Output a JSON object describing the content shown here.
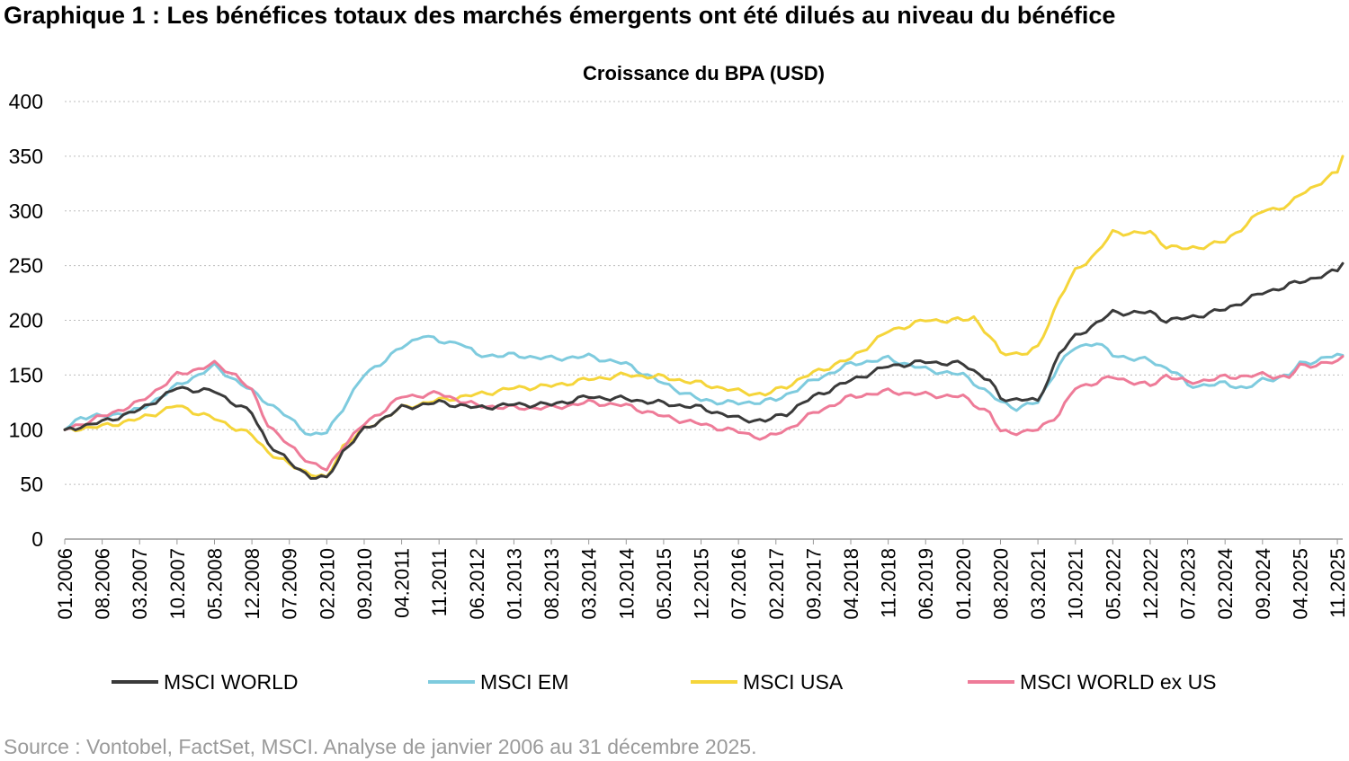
{
  "figure": {
    "title": "Graphique 1 : Les bénéfices totaux des marchés émergents ont été dilués au niveau du bénéfice",
    "source": "Source : Vontobel, FactSet, MSCI. Analyse de janvier 2006 au 31 décembre 2025."
  },
  "chart_data": {
    "type": "line",
    "title": "Croissance du BPA (USD)",
    "xlabel": "",
    "ylabel": "",
    "ylim": [
      0,
      400
    ],
    "yticks": [
      0,
      50,
      100,
      150,
      200,
      250,
      300,
      350,
      400
    ],
    "grid": "horizontal dotted",
    "legend_position": "bottom",
    "x_start": "01.2006",
    "x_end": "12.2025",
    "x_tick_labels": [
      "01.2006",
      "08.2006",
      "03.2007",
      "10.2007",
      "05.2008",
      "12.2008",
      "07.2009",
      "02.2010",
      "09.2010",
      "04.2011",
      "11.2011",
      "06.2012",
      "01.2013",
      "08.2013",
      "03.2014",
      "10.2014",
      "05.2015",
      "12.2015",
      "07.2016",
      "02.2017",
      "09.2017",
      "04.2018",
      "11.2018",
      "06.2019",
      "01.2020",
      "08.2020",
      "03.2021",
      "10.2021",
      "05.2022",
      "12.2022",
      "07.2023",
      "02.2024",
      "09.2024",
      "04.2025",
      "11.2025"
    ],
    "series": [
      {
        "name": "MSCI WORLD",
        "color": "#3a3a3a",
        "points": [
          [
            "01.2006",
            100
          ],
          [
            "08.2006",
            107
          ],
          [
            "03.2007",
            118
          ],
          [
            "10.2007",
            138
          ],
          [
            "05.2008",
            135
          ],
          [
            "12.2008",
            115
          ],
          [
            "03.2009",
            88
          ],
          [
            "07.2009",
            70
          ],
          [
            "11.2009",
            57
          ],
          [
            "02.2010",
            55
          ],
          [
            "05.2010",
            80
          ],
          [
            "09.2010",
            100
          ],
          [
            "04.2011",
            120
          ],
          [
            "11.2011",
            125
          ],
          [
            "06.2012",
            120
          ],
          [
            "01.2013",
            123
          ],
          [
            "08.2013",
            123
          ],
          [
            "03.2014",
            130
          ],
          [
            "10.2014",
            128
          ],
          [
            "05.2015",
            124
          ],
          [
            "12.2015",
            120
          ],
          [
            "07.2016",
            110
          ],
          [
            "12.2016",
            108
          ],
          [
            "04.2017",
            115
          ],
          [
            "09.2017",
            130
          ],
          [
            "04.2018",
            145
          ],
          [
            "11.2018",
            158
          ],
          [
            "06.2019",
            162
          ],
          [
            "01.2020",
            160
          ],
          [
            "06.2020",
            145
          ],
          [
            "08.2020",
            128
          ],
          [
            "01.2021",
            128
          ],
          [
            "03.2021",
            125
          ],
          [
            "07.2021",
            170
          ],
          [
            "10.2021",
            185
          ],
          [
            "05.2022",
            207
          ],
          [
            "12.2022",
            207
          ],
          [
            "03.2023",
            200
          ],
          [
            "07.2023",
            202
          ],
          [
            "02.2024",
            210
          ],
          [
            "09.2024",
            225
          ],
          [
            "04.2025",
            235
          ],
          [
            "11.2025",
            245
          ],
          [
            "12.2025",
            252
          ]
        ]
      },
      {
        "name": "MSCI EM",
        "color": "#7ecbde",
        "points": [
          [
            "01.2006",
            100
          ],
          [
            "04.2006",
            112
          ],
          [
            "08.2006",
            112
          ],
          [
            "03.2007",
            118
          ],
          [
            "10.2007",
            140
          ],
          [
            "05.2008",
            158
          ],
          [
            "09.2008",
            145
          ],
          [
            "12.2008",
            135
          ],
          [
            "05.2009",
            118
          ],
          [
            "07.2009",
            110
          ],
          [
            "11.2009",
            95
          ],
          [
            "02.2010",
            97
          ],
          [
            "05.2010",
            120
          ],
          [
            "09.2010",
            150
          ],
          [
            "04.2011",
            175
          ],
          [
            "08.2011",
            187
          ],
          [
            "11.2011",
            180
          ],
          [
            "03.2012",
            180
          ],
          [
            "06.2012",
            168
          ],
          [
            "01.2013",
            168
          ],
          [
            "08.2013",
            165
          ],
          [
            "03.2014",
            167
          ],
          [
            "10.2014",
            160
          ],
          [
            "05.2015",
            142
          ],
          [
            "12.2015",
            127
          ],
          [
            "07.2016",
            124
          ],
          [
            "02.2017",
            127
          ],
          [
            "09.2017",
            145
          ],
          [
            "04.2018",
            160
          ],
          [
            "11.2018",
            165
          ],
          [
            "06.2019",
            155
          ],
          [
            "01.2020",
            150
          ],
          [
            "04.2020",
            140
          ],
          [
            "08.2020",
            125
          ],
          [
            "11.2020",
            120
          ],
          [
            "03.2021",
            125
          ],
          [
            "07.2021",
            160
          ],
          [
            "10.2021",
            175
          ],
          [
            "02.2022",
            180
          ],
          [
            "05.2022",
            168
          ],
          [
            "12.2022",
            163
          ],
          [
            "05.2023",
            152
          ],
          [
            "07.2023",
            140
          ],
          [
            "02.2024",
            142
          ],
          [
            "06.2024",
            138
          ],
          [
            "09.2024",
            145
          ],
          [
            "02.2025",
            150
          ],
          [
            "04.2025",
            160
          ],
          [
            "11.2025",
            168
          ],
          [
            "12.2025",
            168
          ]
        ]
      },
      {
        "name": "MSCI USA",
        "color": "#f5d53a",
        "points": [
          [
            "01.2006",
            100
          ],
          [
            "08.2006",
            103
          ],
          [
            "03.2007",
            110
          ],
          [
            "10.2007",
            122
          ],
          [
            "05.2008",
            110
          ],
          [
            "12.2008",
            95
          ],
          [
            "03.2009",
            80
          ],
          [
            "07.2009",
            68
          ],
          [
            "11.2009",
            60
          ],
          [
            "02.2010",
            55
          ],
          [
            "05.2010",
            85
          ],
          [
            "09.2010",
            100
          ],
          [
            "04.2011",
            120
          ],
          [
            "11.2011",
            127
          ],
          [
            "06.2012",
            132
          ],
          [
            "01.2013",
            138
          ],
          [
            "08.2013",
            140
          ],
          [
            "03.2014",
            146
          ],
          [
            "10.2014",
            150
          ],
          [
            "05.2015",
            148
          ],
          [
            "12.2015",
            142
          ],
          [
            "07.2016",
            135
          ],
          [
            "12.2016",
            132
          ],
          [
            "04.2017",
            140
          ],
          [
            "09.2017",
            152
          ],
          [
            "04.2018",
            165
          ],
          [
            "11.2018",
            190
          ],
          [
            "06.2019",
            200
          ],
          [
            "01.2020",
            200
          ],
          [
            "03.2020",
            203
          ],
          [
            "06.2020",
            185
          ],
          [
            "08.2020",
            170
          ],
          [
            "01.2021",
            170
          ],
          [
            "03.2021",
            175
          ],
          [
            "07.2021",
            220
          ],
          [
            "10.2021",
            245
          ],
          [
            "02.2022",
            262
          ],
          [
            "05.2022",
            280
          ],
          [
            "12.2022",
            280
          ],
          [
            "03.2023",
            268
          ],
          [
            "07.2023",
            265
          ],
          [
            "02.2024",
            272
          ],
          [
            "09.2024",
            300
          ],
          [
            "02.2025",
            305
          ],
          [
            "04.2025",
            315
          ],
          [
            "11.2025",
            335
          ],
          [
            "12.2025",
            350
          ]
        ]
      },
      {
        "name": "MSCI WORLD ex US",
        "color": "#ee7b98",
        "points": [
          [
            "01.2006",
            100
          ],
          [
            "08.2006",
            112
          ],
          [
            "03.2007",
            125
          ],
          [
            "10.2007",
            150
          ],
          [
            "05.2008",
            160
          ],
          [
            "09.2008",
            150
          ],
          [
            "12.2008",
            135
          ],
          [
            "03.2009",
            105
          ],
          [
            "07.2009",
            85
          ],
          [
            "11.2009",
            70
          ],
          [
            "02.2010",
            63
          ],
          [
            "05.2010",
            85
          ],
          [
            "09.2010",
            105
          ],
          [
            "04.2011",
            130
          ],
          [
            "11.2011",
            133
          ],
          [
            "06.2012",
            122
          ],
          [
            "01.2013",
            120
          ],
          [
            "08.2013",
            120
          ],
          [
            "03.2014",
            125
          ],
          [
            "10.2014",
            122
          ],
          [
            "05.2015",
            112
          ],
          [
            "12.2015",
            105
          ],
          [
            "07.2016",
            98
          ],
          [
            "12.2016",
            92
          ],
          [
            "04.2017",
            100
          ],
          [
            "09.2017",
            115
          ],
          [
            "04.2018",
            130
          ],
          [
            "11.2018",
            135
          ],
          [
            "06.2019",
            132
          ],
          [
            "01.2020",
            130
          ],
          [
            "06.2020",
            115
          ],
          [
            "08.2020",
            98
          ],
          [
            "01.2021",
            98
          ],
          [
            "03.2021",
            100
          ],
          [
            "07.2021",
            115
          ],
          [
            "10.2021",
            138
          ],
          [
            "05.2022",
            148
          ],
          [
            "12.2022",
            140
          ],
          [
            "03.2023",
            150
          ],
          [
            "07.2023",
            143
          ],
          [
            "02.2024",
            148
          ],
          [
            "09.2024",
            150
          ],
          [
            "02.2025",
            148
          ],
          [
            "04.2025",
            158
          ],
          [
            "11.2025",
            162
          ],
          [
            "12.2025",
            167
          ]
        ]
      }
    ]
  }
}
